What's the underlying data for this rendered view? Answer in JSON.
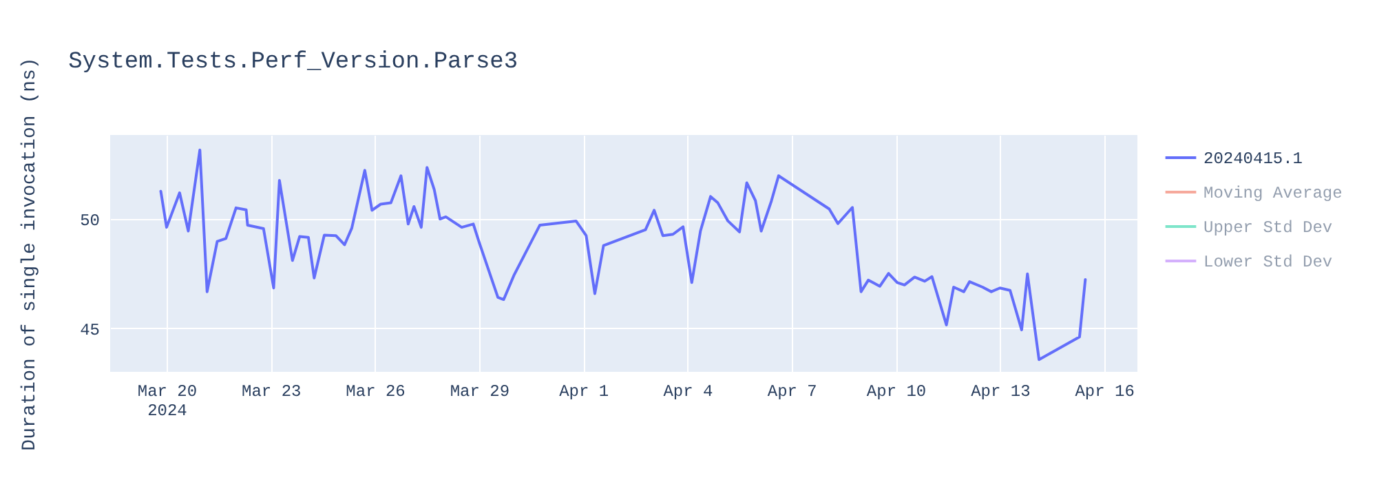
{
  "chart_data": {
    "type": "line",
    "title": "System.Tests.Perf_Version.Parse3",
    "ylabel": "Duration of single invocation (ns)",
    "x": [
      "2024-03-19T20:00",
      "2024-03-20T00:00",
      "2024-03-20T09:00",
      "2024-03-20T15:00",
      "2024-03-20T23:00",
      "2024-03-21T04:00",
      "2024-03-21T11:00",
      "2024-03-21T17:00",
      "2024-03-22T00:00",
      "2024-03-22T07:00",
      "2024-03-22T08:00",
      "2024-03-22T19:00",
      "2024-03-23T02:00",
      "2024-03-23T06:00",
      "2024-03-23T15:00",
      "2024-03-23T20:00",
      "2024-03-24T02:00",
      "2024-03-24T06:00",
      "2024-03-24T13:00",
      "2024-03-24T21:00",
      "2024-03-25T03:00",
      "2024-03-25T08:00",
      "2024-03-25T17:00",
      "2024-03-25T22:00",
      "2024-03-26T04:00",
      "2024-03-26T11:00",
      "2024-03-26T18:00",
      "2024-03-26T23:00",
      "2024-03-27T03:00",
      "2024-03-27T08:00",
      "2024-03-27T12:00",
      "2024-03-27T17:00",
      "2024-03-27T21:00",
      "2024-03-28T01:00",
      "2024-03-28T12:00",
      "2024-03-28T20:00",
      "2024-03-29T00:00",
      "2024-03-29T13:00",
      "2024-03-29T17:00",
      "2024-03-30T00:00",
      "2024-03-30T18:00",
      "2024-03-31T19:00",
      "2024-04-01T02:00",
      "2024-04-01T08:00",
      "2024-04-01T14:00",
      "2024-04-02T19:00",
      "2024-04-03T01:00",
      "2024-04-03T07:00",
      "2024-04-03T14:00",
      "2024-04-03T21:00",
      "2024-04-04T03:00",
      "2024-04-04T09:00",
      "2024-04-04T16:00",
      "2024-04-04T21:00",
      "2024-04-05T04:00",
      "2024-04-05T12:00",
      "2024-04-05T17:00",
      "2024-04-05T23:00",
      "2024-04-06T03:00",
      "2024-04-06T10:00",
      "2024-04-06T15:00",
      "2024-04-08T02:00",
      "2024-04-08T08:00",
      "2024-04-08T18:00",
      "2024-04-09T00:00",
      "2024-04-09T05:00",
      "2024-04-09T13:00",
      "2024-04-09T19:00",
      "2024-04-10T01:00",
      "2024-04-10T06:00",
      "2024-04-10T13:00",
      "2024-04-10T20:00",
      "2024-04-11T01:00",
      "2024-04-11T11:00",
      "2024-04-11T16:00",
      "2024-04-11T23:00",
      "2024-04-12T03:00",
      "2024-04-12T12:00",
      "2024-04-12T18:00",
      "2024-04-13T00:00",
      "2024-04-13T07:00",
      "2024-04-13T15:00",
      "2024-04-13T19:00",
      "2024-04-14T03:00",
      "2024-04-15T07:00",
      "2024-04-15T11:00"
    ],
    "series": [
      {
        "name": "20240415.1",
        "color": "#636efa",
        "values": [
          51.27,
          49.62,
          51.2,
          49.45,
          53.16,
          46.67,
          48.97,
          49.11,
          50.51,
          50.42,
          49.72,
          49.56,
          46.84,
          51.77,
          48.1,
          49.2,
          49.16,
          47.3,
          49.26,
          49.24,
          48.82,
          49.58,
          52.23,
          50.4,
          50.68,
          50.74,
          51.98,
          49.77,
          50.57,
          49.62,
          52.36,
          51.35,
          50.0,
          50.1,
          49.62,
          49.77,
          48.94,
          46.41,
          46.31,
          47.41,
          49.72,
          49.91,
          49.24,
          46.58,
          48.78,
          49.51,
          50.4,
          49.24,
          49.3,
          49.64,
          47.09,
          49.45,
          51.03,
          50.74,
          49.91,
          49.41,
          51.66,
          50.84,
          49.45,
          50.82,
          51.98,
          50.46,
          49.79,
          50.53,
          46.67,
          47.2,
          46.92,
          47.51,
          47.09,
          46.98,
          47.34,
          47.15,
          47.36,
          45.15,
          46.88,
          46.67,
          47.13,
          46.88,
          46.67,
          46.84,
          46.73,
          44.92,
          47.49,
          43.56,
          44.6,
          47.23
        ]
      },
      {
        "name": "Moving Average",
        "color": "#ef553b",
        "values": [
          null,
          null,
          null,
          null,
          null,
          null,
          null,
          null,
          null,
          null,
          null,
          null,
          null,
          null,
          null,
          null,
          null,
          null,
          null,
          null,
          null,
          null,
          null,
          null,
          null,
          null,
          null,
          null,
          null,
          null,
          null,
          null,
          null,
          null,
          null,
          null,
          null,
          null,
          null,
          null,
          null,
          null,
          null,
          null,
          null,
          null,
          null,
          null,
          null,
          null,
          null,
          null,
          null,
          null,
          null,
          null,
          null,
          null,
          null,
          null,
          null,
          null,
          null,
          null,
          null,
          null,
          null,
          null,
          null,
          null,
          null,
          null,
          null,
          null,
          null,
          null,
          null,
          null,
          null,
          null,
          null,
          null,
          null,
          null,
          null,
          null
        ]
      },
      {
        "name": "Upper Std Dev",
        "color": "#00cc96",
        "values": [
          null,
          null,
          null,
          null,
          null,
          null,
          null,
          null,
          null,
          null,
          null,
          null,
          null,
          null,
          null,
          null,
          null,
          null,
          null,
          null,
          null,
          null,
          null,
          null,
          null,
          null,
          null,
          null,
          null,
          null,
          null,
          null,
          null,
          null,
          null,
          null,
          null,
          null,
          null,
          null,
          null,
          null,
          null,
          null,
          null,
          null,
          null,
          null,
          null,
          null,
          null,
          null,
          null,
          null,
          null,
          null,
          null,
          null,
          null,
          null,
          null,
          null,
          null,
          null,
          null,
          null,
          null,
          null,
          null,
          null,
          null,
          null,
          null,
          null,
          null,
          null,
          null,
          null,
          null,
          null,
          null,
          null,
          null,
          null,
          null,
          null
        ]
      },
      {
        "name": "Lower Std Dev",
        "color": "#ab63fa",
        "values": [
          null,
          null,
          null,
          null,
          null,
          null,
          null,
          null,
          null,
          null,
          null,
          null,
          null,
          null,
          null,
          null,
          null,
          null,
          null,
          null,
          null,
          null,
          null,
          null,
          null,
          null,
          null,
          null,
          null,
          null,
          null,
          null,
          null,
          null,
          null,
          null,
          null,
          null,
          null,
          null,
          null,
          null,
          null,
          null,
          null,
          null,
          null,
          null,
          null,
          null,
          null,
          null,
          null,
          null,
          null,
          null,
          null,
          null,
          null,
          null,
          null,
          null,
          null,
          null,
          null,
          null,
          null,
          null,
          null,
          null,
          null,
          null,
          null,
          null,
          null,
          null,
          null,
          null,
          null,
          null,
          null,
          null,
          null,
          null,
          null,
          null
        ]
      }
    ],
    "xlim": [
      "2024-03-18T09:00",
      "2024-04-16T23:00"
    ],
    "xticks": [
      {
        "value": "2024-03-20",
        "label": "Mar 20\n2024"
      },
      {
        "value": "2024-03-23",
        "label": "Mar 23"
      },
      {
        "value": "2024-03-26",
        "label": "Mar 26"
      },
      {
        "value": "2024-03-29",
        "label": "Mar 29"
      },
      {
        "value": "2024-04-01",
        "label": "Apr 1"
      },
      {
        "value": "2024-04-04",
        "label": "Apr 4"
      },
      {
        "value": "2024-04-07",
        "label": "Apr 7"
      },
      {
        "value": "2024-04-10",
        "label": "Apr 10"
      },
      {
        "value": "2024-04-13",
        "label": "Apr 13"
      },
      {
        "value": "2024-04-16",
        "label": "Apr 16"
      }
    ],
    "ylim": [
      43,
      53.85
    ],
    "yticks": [
      45,
      50
    ],
    "grid": true,
    "legend": "top right",
    "line_style": "solid"
  }
}
